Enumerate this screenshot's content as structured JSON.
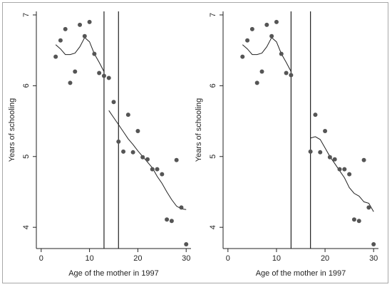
{
  "chart_data": [
    {
      "type": "scatter",
      "xlabel": "Age of the mother in 1997",
      "ylabel": "Years of schooling",
      "xlim": [
        -1,
        31
      ],
      "ylim": [
        3.7,
        7.05
      ],
      "xticks": [
        0,
        10,
        20,
        30
      ],
      "yticks": [
        4,
        5,
        6,
        7
      ],
      "grid": false,
      "points": [
        [
          3,
          6.41
        ],
        [
          4,
          6.64
        ],
        [
          5,
          6.8
        ],
        [
          6,
          6.04
        ],
        [
          7,
          6.2
        ],
        [
          8,
          6.86
        ],
        [
          9,
          6.7
        ],
        [
          10,
          6.9
        ],
        [
          11,
          6.45
        ],
        [
          12,
          6.18
        ],
        [
          13,
          6.14
        ],
        [
          14,
          6.11
        ],
        [
          15,
          5.77
        ],
        [
          16,
          5.21
        ],
        [
          17,
          5.07
        ],
        [
          18,
          5.59
        ],
        [
          19,
          5.06
        ],
        [
          20,
          5.36
        ],
        [
          21,
          4.99
        ],
        [
          22,
          4.96
        ],
        [
          23,
          4.82
        ],
        [
          24,
          4.82
        ],
        [
          25,
          4.75
        ],
        [
          26,
          4.11
        ],
        [
          27,
          4.09
        ],
        [
          28,
          4.95
        ],
        [
          29,
          4.28
        ],
        [
          30,
          3.76
        ]
      ],
      "vlines": [
        13,
        16
      ],
      "smooth_lines": [
        [
          [
            3,
            6.58
          ],
          [
            4,
            6.52
          ],
          [
            5,
            6.44
          ],
          [
            6,
            6.44
          ],
          [
            7,
            6.46
          ],
          [
            8,
            6.55
          ],
          [
            9,
            6.68
          ],
          [
            10,
            6.62
          ],
          [
            11,
            6.45
          ],
          [
            12,
            6.33
          ],
          [
            13,
            6.2
          ]
        ],
        [
          [
            14,
            5.65
          ],
          [
            15,
            5.55
          ],
          [
            16,
            5.45
          ],
          [
            17,
            5.35
          ],
          [
            18,
            5.25
          ],
          [
            19,
            5.17
          ],
          [
            20,
            5.08
          ],
          [
            21,
            5.0
          ],
          [
            22,
            4.92
          ],
          [
            23,
            4.84
          ],
          [
            24,
            4.72
          ],
          [
            25,
            4.62
          ],
          [
            26,
            4.5
          ],
          [
            27,
            4.39
          ],
          [
            28,
            4.3
          ],
          [
            29,
            4.26
          ],
          [
            30,
            4.25
          ]
        ]
      ]
    },
    {
      "type": "scatter",
      "xlabel": "Age of the mother in 1997",
      "ylabel": "Years of schooling",
      "xlim": [
        -1,
        31
      ],
      "ylim": [
        3.7,
        7.05
      ],
      "xticks": [
        0,
        10,
        20,
        30
      ],
      "yticks": [
        4,
        5,
        6,
        7
      ],
      "grid": false,
      "points": [
        [
          3,
          6.41
        ],
        [
          4,
          6.64
        ],
        [
          5,
          6.8
        ],
        [
          6,
          6.04
        ],
        [
          7,
          6.2
        ],
        [
          8,
          6.86
        ],
        [
          9,
          6.7
        ],
        [
          10,
          6.9
        ],
        [
          11,
          6.45
        ],
        [
          12,
          6.18
        ],
        [
          13,
          6.15
        ],
        [
          17,
          5.07
        ],
        [
          18,
          5.59
        ],
        [
          19,
          5.06
        ],
        [
          20,
          5.36
        ],
        [
          21,
          4.99
        ],
        [
          22,
          4.96
        ],
        [
          23,
          4.82
        ],
        [
          24,
          4.82
        ],
        [
          25,
          4.75
        ],
        [
          26,
          4.11
        ],
        [
          27,
          4.09
        ],
        [
          28,
          4.95
        ],
        [
          29,
          4.28
        ],
        [
          30,
          3.76
        ]
      ],
      "vlines": [
        13,
        17
      ],
      "smooth_lines": [
        [
          [
            3,
            6.58
          ],
          [
            4,
            6.52
          ],
          [
            5,
            6.44
          ],
          [
            6,
            6.44
          ],
          [
            7,
            6.46
          ],
          [
            8,
            6.55
          ],
          [
            9,
            6.68
          ],
          [
            10,
            6.62
          ],
          [
            11,
            6.45
          ],
          [
            12,
            6.33
          ],
          [
            13,
            6.2
          ]
        ],
        [
          [
            17,
            5.26
          ],
          [
            18,
            5.28
          ],
          [
            19,
            5.24
          ],
          [
            20,
            5.12
          ],
          [
            21,
            5.0
          ],
          [
            22,
            4.9
          ],
          [
            23,
            4.8
          ],
          [
            24,
            4.7
          ],
          [
            25,
            4.56
          ],
          [
            26,
            4.48
          ],
          [
            27,
            4.44
          ],
          [
            28,
            4.36
          ],
          [
            29,
            4.34
          ],
          [
            30,
            4.22
          ]
        ]
      ]
    }
  ]
}
